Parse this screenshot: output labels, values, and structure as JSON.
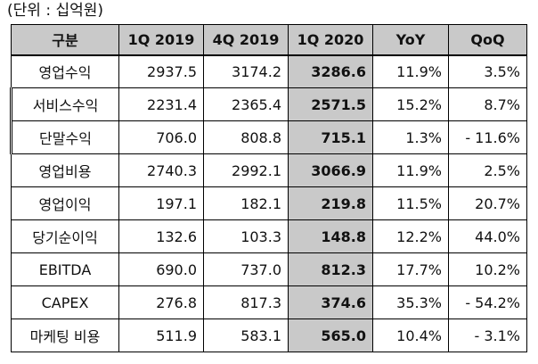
{
  "caption": "(단위 : 십억원)",
  "table": {
    "headers": [
      "구분",
      "1Q 2019",
      "4Q 2019",
      "1Q 2020",
      "YoY",
      "QoQ"
    ],
    "rows": [
      [
        "영업수익",
        "2937.5",
        "3174.2",
        "3286.6",
        "11.9%",
        "3.5%"
      ],
      [
        "서비스수익",
        "2231.4",
        "2365.4",
        "2571.5",
        "15.2%",
        "8.7%"
      ],
      [
        "단말수익",
        "706.0",
        "808.8",
        "715.1",
        "1.3%",
        "- 11.6%"
      ],
      [
        "영업비용",
        "2740.3",
        "2992.1",
        "3066.9",
        "11.9%",
        "2.5%"
      ],
      [
        "영업이익",
        "197.1",
        "182.1",
        "219.8",
        "11.5%",
        "20.7%"
      ],
      [
        "당기순이익",
        "132.6",
        "103.3",
        "148.8",
        "12.2%",
        "44.0%"
      ],
      [
        "EBITDA",
        "690.0",
        "737.0",
        "812.3",
        "17.7%",
        "10.2%"
      ],
      [
        "CAPEX",
        "276.8",
        "817.3",
        "374.6",
        "35.3%",
        "- 54.2%"
      ],
      [
        "마케팅 비용",
        "511.9",
        "583.1",
        "565.0",
        "10.4%",
        "- 3.1%"
      ]
    ]
  },
  "colors": {
    "highlight": "#c9c9c9",
    "border": "#000000"
  }
}
